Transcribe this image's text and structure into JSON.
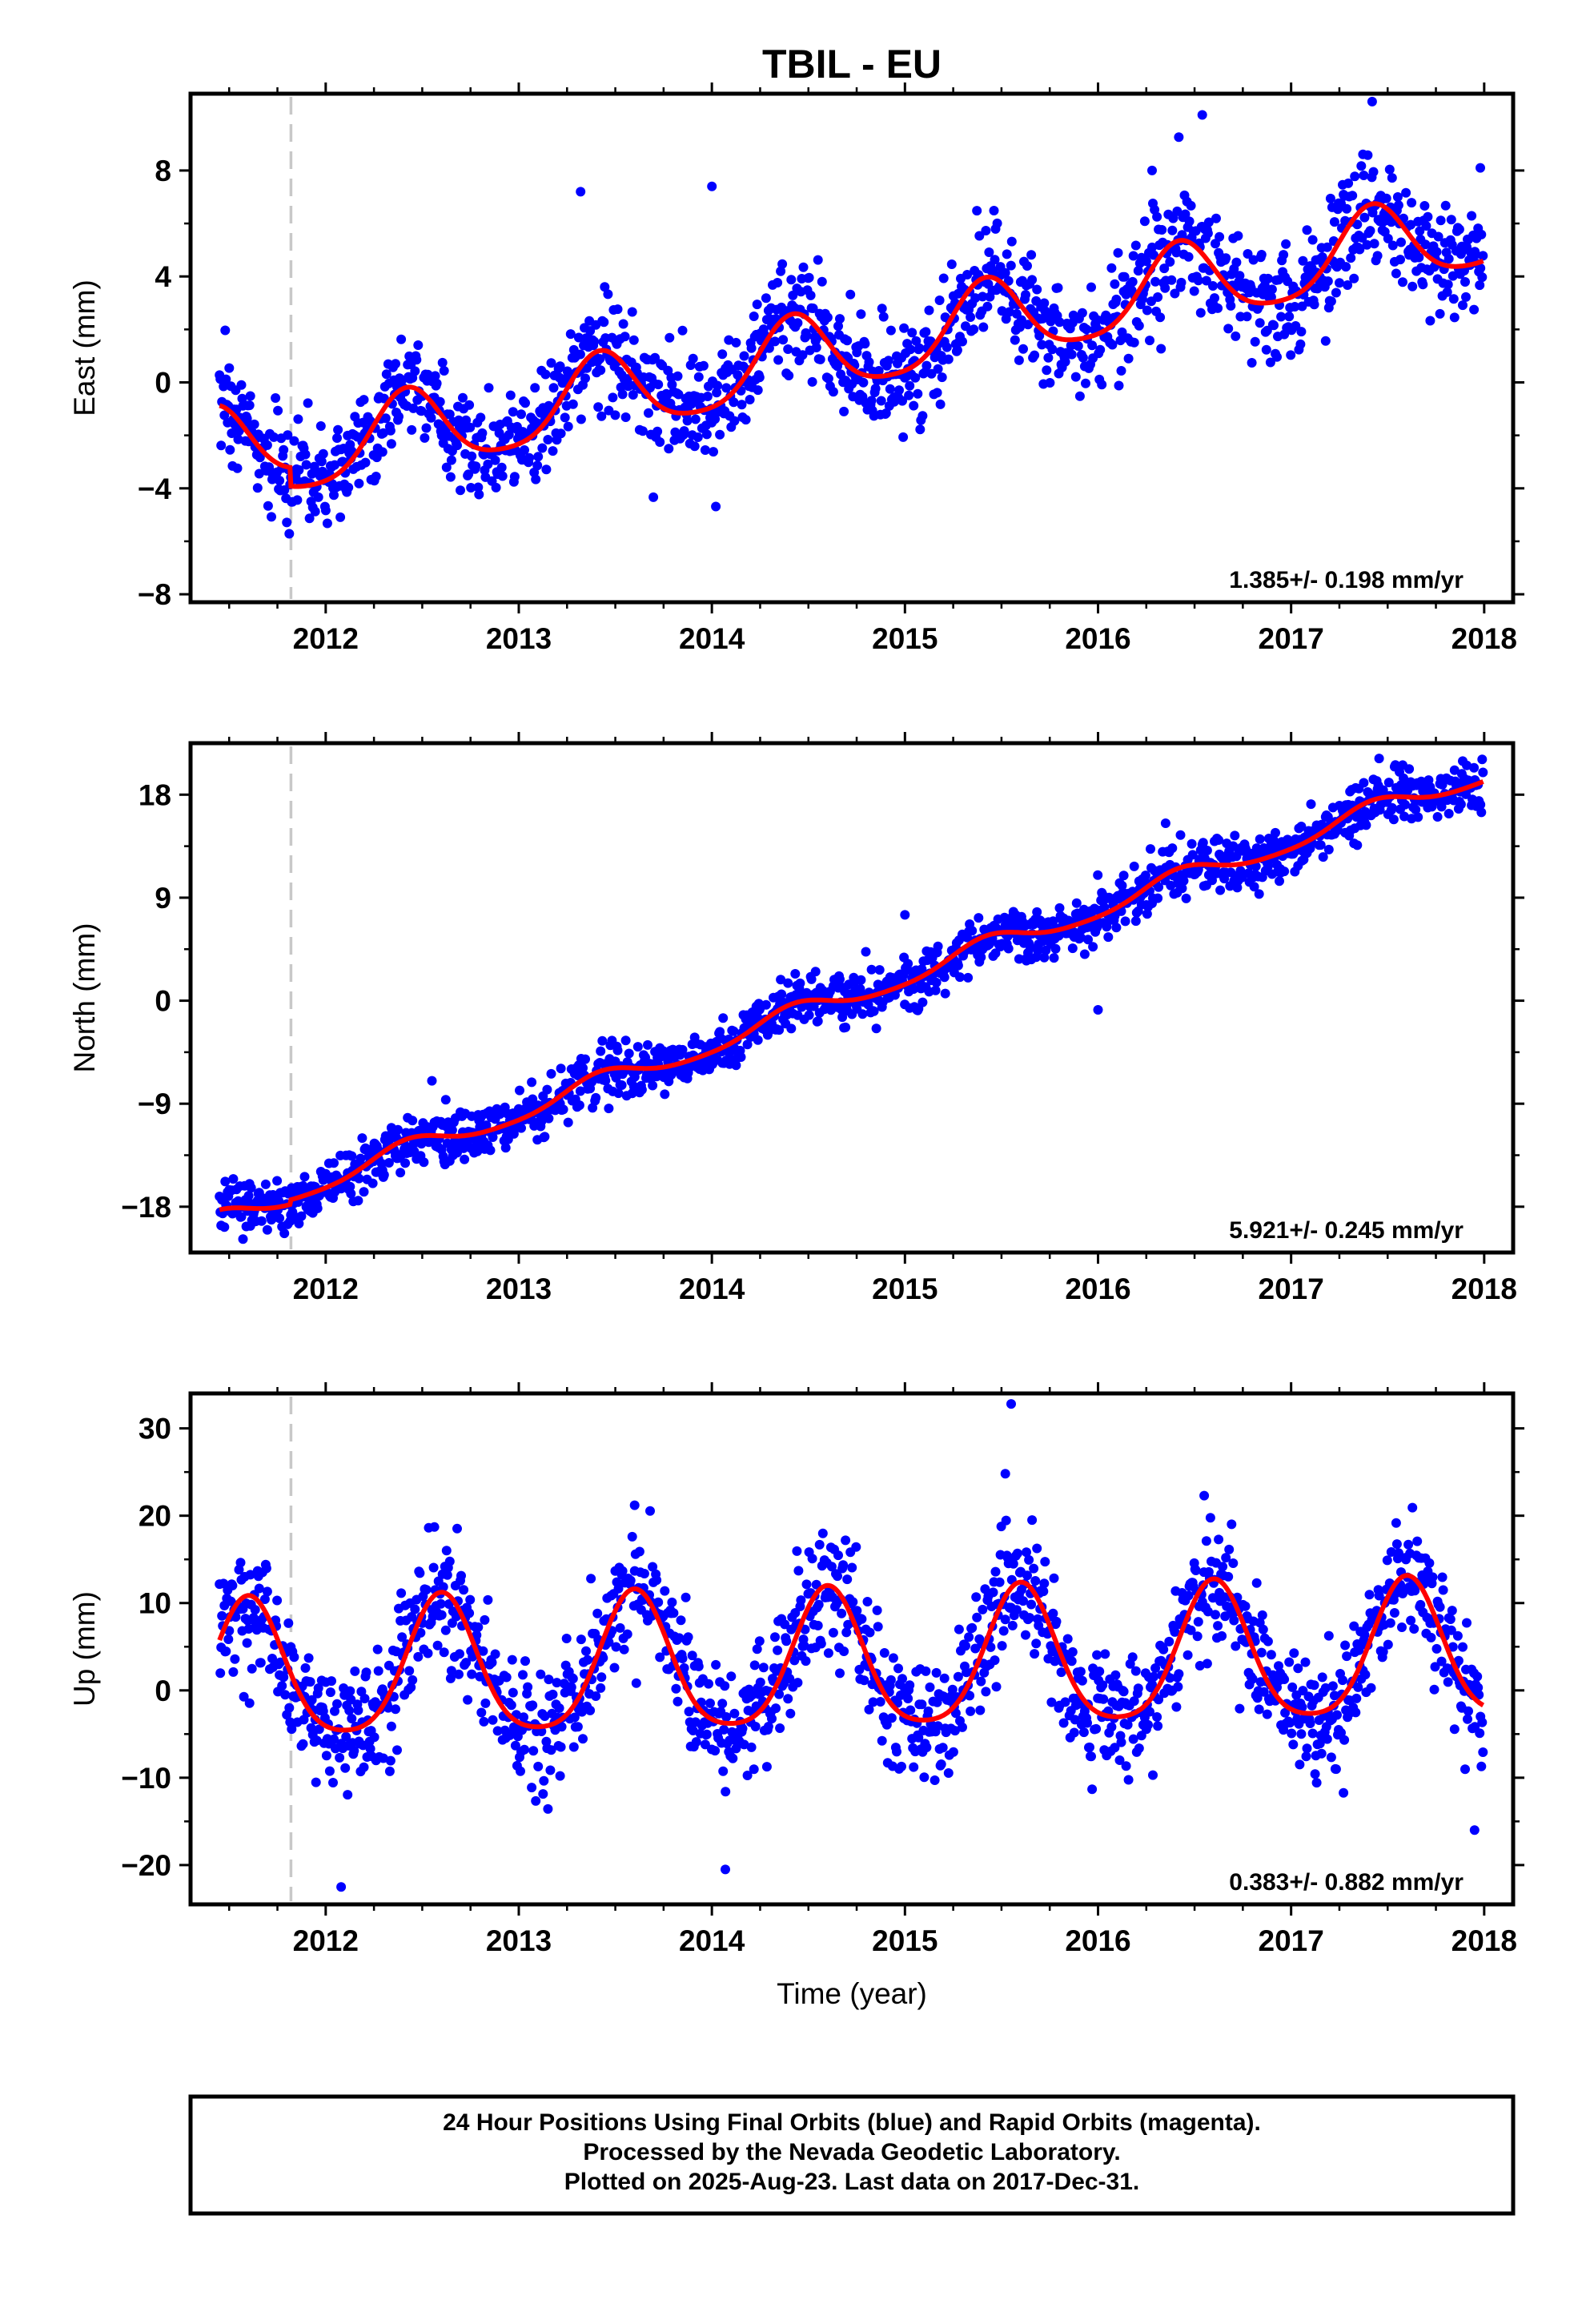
{
  "chart_data": {
    "type": "scatter",
    "title": "TBIL - EU",
    "xlabel": "Time (year)",
    "x_ticks": [
      2012,
      2013,
      2014,
      2015,
      2016,
      2017,
      2018
    ],
    "xlim": [
      2011.3,
      2018.15
    ],
    "event_line_x": 2011.82,
    "colors": {
      "points": "#0000ff",
      "fit": "#ff0000",
      "event_line": "#c8c8c8"
    },
    "legend": "none",
    "grid": false,
    "panels": [
      {
        "id": "east",
        "ylabel": "East (mm)",
        "ylim": [
          -8.3,
          10.9
        ],
        "y_ticks": [
          -8,
          -4,
          0,
          4,
          8
        ],
        "y_tick_labels": [
          "−8",
          "−4",
          "0",
          "4",
          "8"
        ],
        "rate_label": "1.385+/- 0.198 mm/yr",
        "rate": 1.385,
        "amplitude": 1.5,
        "peak": 2011.42,
        "offset": -2.6,
        "noise": 1.05,
        "step": -0.7,
        "outliers": [
          [
            2016.54,
            10.1
          ],
          [
            2017.42,
            10.6
          ],
          [
            2014.0,
            7.4
          ],
          [
            2013.32,
            7.2
          ],
          [
            2016.28,
            8.0
          ],
          [
            2017.98,
            8.1
          ]
        ]
      },
      {
        "id": "north",
        "ylabel": "North (mm)",
        "ylim": [
          -22,
          22.5
        ],
        "y_ticks": [
          -18,
          -9,
          0,
          9,
          18
        ],
        "y_tick_labels": [
          "−18",
          "−9",
          "0",
          "9",
          "18"
        ],
        "rate_label": "5.921+/- 0.245 mm/yr",
        "rate": 5.921,
        "amplitude": 0.9,
        "peak": 2011.42,
        "offset": -19.3,
        "noise": 1.15,
        "step": 0.4,
        "outliers": [
          [
            2016.0,
            -0.8
          ],
          [
            2012.55,
            -7.0
          ],
          [
            2015.0,
            7.5
          ],
          [
            2016.35,
            15.5
          ]
        ]
      },
      {
        "id": "up",
        "ylabel": "Up (mm)",
        "ylim": [
          -24.5,
          34
        ],
        "y_ticks": [
          -20,
          -10,
          0,
          10,
          20,
          30
        ],
        "y_tick_labels": [
          "−20",
          "−10",
          "0",
          "10",
          "20",
          "30"
        ],
        "rate_label": "0.383+/- 0.882 mm/yr",
        "rate": 0.383,
        "amplitude": 7.8,
        "peak": 2011.6,
        "offset": 1.6,
        "noise": 3.6,
        "step": 0,
        "outliers": [
          [
            2015.55,
            32.8
          ],
          [
            2015.52,
            24.8
          ],
          [
            2016.55,
            22.3
          ],
          [
            2012.08,
            -22.5
          ],
          [
            2014.07,
            -20.5
          ],
          [
            2013.6,
            21.2
          ],
          [
            2017.95,
            -16.0
          ]
        ]
      }
    ],
    "footer_lines": [
      "24 Hour Positions Using Final Orbits (blue) and Rapid Orbits (magenta).",
      "Processed by the Nevada Geodetic Laboratory.",
      "Plotted on 2025-Aug-23. Last data on 2017-Dec-31."
    ]
  }
}
